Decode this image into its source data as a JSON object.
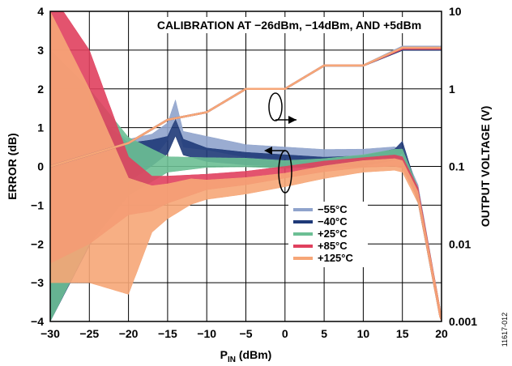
{
  "chart_data": {
    "type": "line",
    "title": "CALIBRATION AT −26dBm, −14dBm, AND +5dBm",
    "xlabel": "P",
    "xlabel_sub": "IN",
    "xlabel_unit": " (dBm)",
    "ylabel_left": "ERROR (dB)",
    "ylabel_right": "OUTPUT VOLTAGE (V)",
    "figure_id": "11617-012",
    "xlim": [
      -30,
      20
    ],
    "ylim_left": [
      -4,
      4
    ],
    "ylim_right": [
      0.001,
      10
    ],
    "right_scale": "log",
    "grid": true,
    "legend_placement": "center-bottom",
    "x_ticks": [
      "−30",
      "−25",
      "−20",
      "−15",
      "−10",
      "−5",
      "0",
      "5",
      "10",
      "15",
      "20"
    ],
    "y_left_ticks": [
      "4",
      "3",
      "2",
      "1",
      "0",
      "−1",
      "−2",
      "−3",
      "−4"
    ],
    "y_right_ticks": [
      "10",
      "1",
      "0.1",
      "0.01",
      "0.001"
    ],
    "series": [
      {
        "name": "−55°C",
        "color": "#8fa3cc",
        "error_center": [
          [
            -30,
            -0.5
          ],
          [
            -25,
            -0.2
          ],
          [
            -20,
            0.2
          ],
          [
            -17,
            0.5
          ],
          [
            -15,
            0.9
          ],
          [
            -14,
            1.5
          ],
          [
            -13,
            0.7
          ],
          [
            -10,
            0.6
          ],
          [
            -5,
            0.4
          ],
          [
            0,
            0.35
          ],
          [
            5,
            0.3
          ],
          [
            10,
            0.32
          ],
          [
            14,
            0.38
          ],
          [
            15,
            0.3
          ],
          [
            17,
            -0.6
          ],
          [
            20,
            -4
          ]
        ],
        "error_width_db": [
          [
            -30,
            5.0
          ],
          [
            -25,
            3.0
          ],
          [
            -20,
            1.0
          ],
          [
            -15,
            0.45
          ],
          [
            -10,
            0.35
          ],
          [
            0,
            0.3
          ],
          [
            10,
            0.25
          ],
          [
            15,
            0.25
          ],
          [
            20,
            0.25
          ]
        ],
        "output_voltage": [
          [
            -30,
            0.1
          ],
          [
            -20,
            0.2
          ],
          [
            -15,
            0.4
          ],
          [
            -10,
            0.5
          ],
          [
            -5,
            1.0
          ],
          [
            0,
            1.0
          ],
          [
            5,
            2.0
          ],
          [
            10,
            2.0
          ],
          [
            15,
            3.5
          ],
          [
            20,
            3.5
          ]
        ]
      },
      {
        "name": "−40°C",
        "color": "#1f3a78",
        "error_center": [
          [
            -30,
            -1.0
          ],
          [
            -25,
            -0.3
          ],
          [
            -20,
            0.1
          ],
          [
            -17,
            0.35
          ],
          [
            -15,
            0.55
          ],
          [
            -14,
            1.0
          ],
          [
            -13,
            0.5
          ],
          [
            -10,
            0.3
          ],
          [
            -5,
            0.2
          ],
          [
            0,
            0.15
          ],
          [
            5,
            0.1
          ],
          [
            10,
            0.15
          ],
          [
            14,
            0.3
          ],
          [
            15,
            0.5
          ],
          [
            17,
            -0.8
          ],
          [
            20,
            -4
          ]
        ],
        "error_width_db": [
          [
            -30,
            6.0
          ],
          [
            -25,
            3.5
          ],
          [
            -20,
            1.0
          ],
          [
            -15,
            0.45
          ],
          [
            -10,
            0.35
          ],
          [
            0,
            0.3
          ],
          [
            10,
            0.25
          ],
          [
            15,
            0.3
          ],
          [
            20,
            0.3
          ]
        ],
        "output_voltage": [
          [
            -30,
            0.1
          ],
          [
            -20,
            0.2
          ],
          [
            -15,
            0.4
          ],
          [
            -10,
            0.5
          ],
          [
            -5,
            1.0
          ],
          [
            0,
            1.0
          ],
          [
            5,
            2.0
          ],
          [
            10,
            2.0
          ],
          [
            15,
            3.2
          ],
          [
            20,
            3.2
          ]
        ]
      },
      {
        "name": "+25°C",
        "color": "#6cbf94",
        "error_center": [
          [
            -30,
            -0.5
          ],
          [
            -25,
            0.0
          ],
          [
            -20,
            0.0
          ],
          [
            -15,
            0.05
          ],
          [
            -10,
            0.1
          ],
          [
            -5,
            0.1
          ],
          [
            0,
            0.05
          ],
          [
            5,
            0.1
          ],
          [
            10,
            0.2
          ],
          [
            14,
            0.3
          ],
          [
            15,
            0.3
          ],
          [
            17,
            -0.7
          ],
          [
            20,
            -4
          ]
        ],
        "error_width_db": [
          [
            -30,
            7.0
          ],
          [
            -25,
            4.0
          ],
          [
            -20,
            1.5
          ],
          [
            -15,
            0.4
          ],
          [
            -10,
            0.25
          ],
          [
            0,
            0.2
          ],
          [
            10,
            0.2
          ],
          [
            15,
            0.3
          ],
          [
            20,
            0.3
          ]
        ],
        "output_voltage": [
          [
            -30,
            0.1
          ],
          [
            -20,
            0.2
          ],
          [
            -15,
            0.4
          ],
          [
            -10,
            0.5
          ],
          [
            -5,
            1.0
          ],
          [
            0,
            1.0
          ],
          [
            5,
            2.0
          ],
          [
            10,
            2.0
          ],
          [
            15,
            3.3
          ],
          [
            20,
            3.3
          ]
        ]
      },
      {
        "name": "+85°C",
        "color": "#e0405e",
        "error_center": [
          [
            -30,
            1.0
          ],
          [
            -25,
            0.5
          ],
          [
            -20,
            -0.5
          ],
          [
            -17,
            -0.7
          ],
          [
            -15,
            -0.6
          ],
          [
            -10,
            -0.4
          ],
          [
            -5,
            -0.3
          ],
          [
            0,
            -0.15
          ],
          [
            5,
            0.0
          ],
          [
            10,
            0.1
          ],
          [
            14,
            0.15
          ],
          [
            15,
            0.1
          ],
          [
            17,
            -0.7
          ],
          [
            20,
            -4
          ]
        ],
        "error_width_db": [
          [
            -30,
            7.0
          ],
          [
            -25,
            5.0
          ],
          [
            -20,
            1.5
          ],
          [
            -17,
            0.9
          ],
          [
            -15,
            0.7
          ],
          [
            -10,
            0.4
          ],
          [
            0,
            0.3
          ],
          [
            10,
            0.25
          ],
          [
            15,
            0.3
          ],
          [
            20,
            0.3
          ]
        ],
        "output_voltage": [
          [
            -30,
            0.1
          ],
          [
            -20,
            0.2
          ],
          [
            -15,
            0.4
          ],
          [
            -10,
            0.5
          ],
          [
            -5,
            1.0
          ],
          [
            0,
            1.0
          ],
          [
            5,
            2.0
          ],
          [
            10,
            2.0
          ],
          [
            15,
            3.3
          ],
          [
            20,
            3.3
          ]
        ]
      },
      {
        "name": "+125°C",
        "color": "#f6a677",
        "error_center": [
          [
            -30,
            0.5
          ],
          [
            -25,
            -0.5
          ],
          [
            -20,
            -1.8
          ],
          [
            -17,
            -1.1
          ],
          [
            -15,
            -0.9
          ],
          [
            -12,
            -0.65
          ],
          [
            -10,
            -0.6
          ],
          [
            -5,
            -0.5
          ],
          [
            0,
            -0.35
          ],
          [
            5,
            -0.15
          ],
          [
            10,
            0.0
          ],
          [
            14,
            0.05
          ],
          [
            15,
            0.0
          ],
          [
            17,
            -0.8
          ],
          [
            20,
            -4
          ]
        ],
        "error_width_db": [
          [
            -30,
            7.0
          ],
          [
            -25,
            5.0
          ],
          [
            -20,
            3.0
          ],
          [
            -17,
            1.2
          ],
          [
            -15,
            0.9
          ],
          [
            -10,
            0.5
          ],
          [
            0,
            0.35
          ],
          [
            10,
            0.3
          ],
          [
            15,
            0.3
          ],
          [
            20,
            0.3
          ]
        ],
        "output_voltage": [
          [
            -30,
            0.1
          ],
          [
            -20,
            0.2
          ],
          [
            -15,
            0.4
          ],
          [
            -10,
            0.5
          ],
          [
            -5,
            1.0
          ],
          [
            0,
            1.0
          ],
          [
            5,
            2.0
          ],
          [
            10,
            2.0
          ],
          [
            15,
            3.4
          ],
          [
            20,
            3.4
          ]
        ]
      }
    ]
  }
}
